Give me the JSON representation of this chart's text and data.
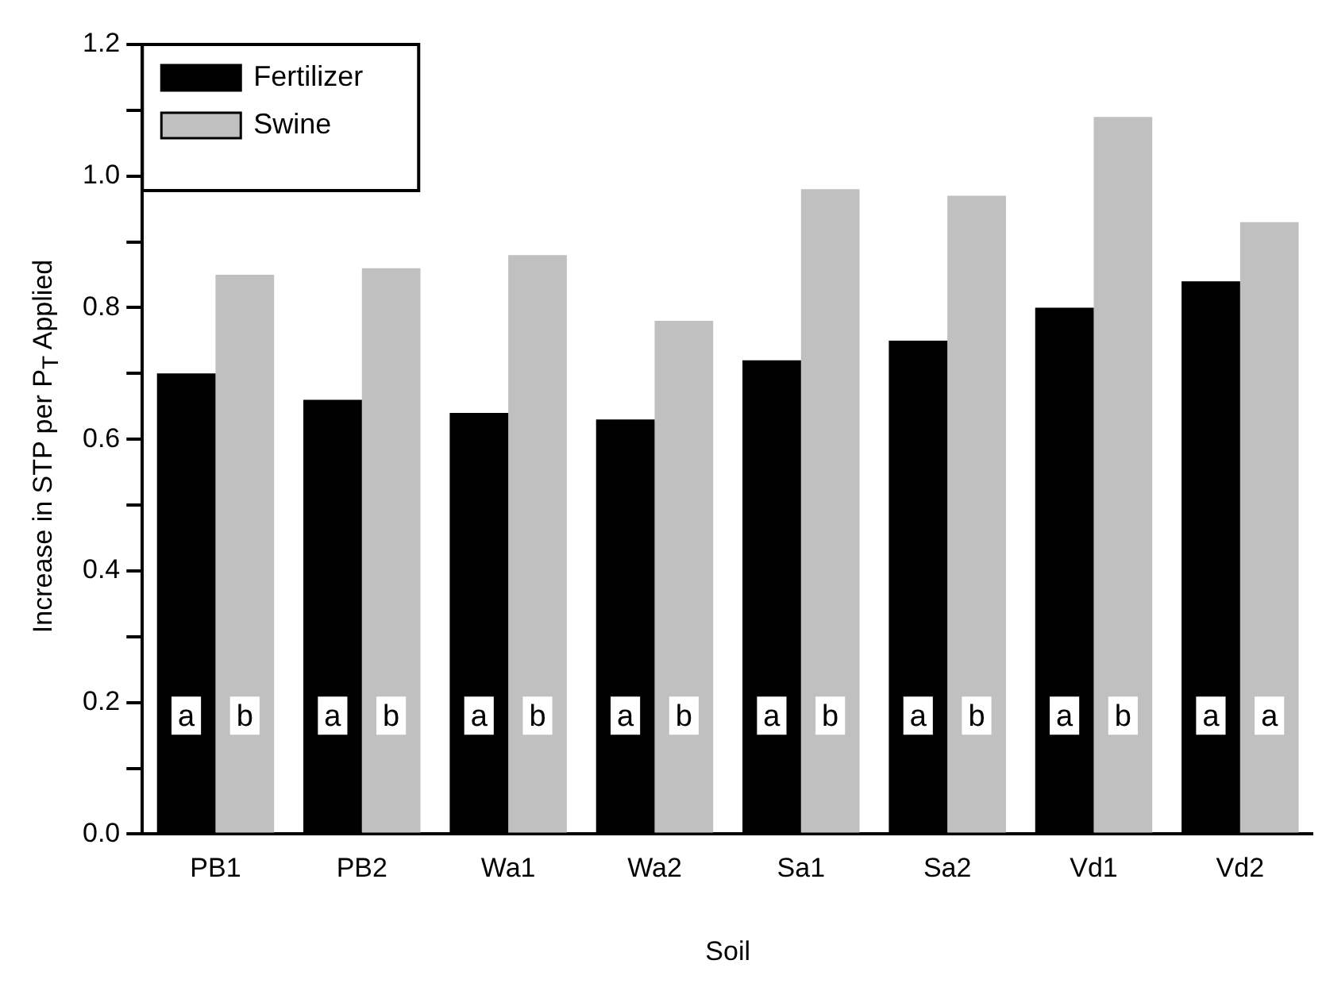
{
  "chart_data": {
    "type": "bar",
    "xlabel": "Soil",
    "ylabel": "Increase in STP per P$_{T}$ Applied",
    "categories": [
      "PB1",
      "PB2",
      "Wa1",
      "Wa2",
      "Sa1",
      "Sa2",
      "Vd1",
      "Vd2"
    ],
    "series": [
      {
        "name": "Fertilizer",
        "color": "#000000",
        "values": [
          0.7,
          0.66,
          0.64,
          0.63,
          0.72,
          0.75,
          0.8,
          0.84
        ]
      },
      {
        "name": "Swine",
        "color": "#c0c0c0",
        "values": [
          0.85,
          0.86,
          0.88,
          0.78,
          0.98,
          0.97,
          1.09,
          0.93
        ]
      }
    ],
    "ylim": [
      0,
      1.2
    ],
    "yticks": [
      {
        "value": 0,
        "label": "0.0"
      },
      {
        "value": 0.1,
        "label": null
      },
      {
        "value": 0.2,
        "label": "0.2"
      },
      {
        "value": 0.3,
        "label": null
      },
      {
        "value": 0.4,
        "label": "0.4"
      },
      {
        "value": 0.5,
        "label": null
      },
      {
        "value": 0.6,
        "label": "0.6"
      },
      {
        "value": 0.7,
        "label": null
      },
      {
        "value": 0.8,
        "label": "0.8"
      },
      {
        "value": 0.9,
        "label": null
      },
      {
        "value": 1.0,
        "label": "1.0"
      },
      {
        "value": 1.1,
        "label": null
      },
      {
        "value": 1.2,
        "label": "1.2"
      }
    ],
    "grid": false,
    "legend": "top left",
    "annotations": [
      {
        "text": "a",
        "x": "PB1",
        "y": 0.18
      },
      {
        "text": "b",
        "x": "PB1",
        "y": 0.18
      },
      {
        "text": "a",
        "x": "PB2",
        "y": 0.18
      },
      {
        "text": "b",
        "x": "PB2",
        "y": 0.18
      },
      {
        "text": "a",
        "x": "Wa1",
        "y": 0.18
      },
      {
        "text": "b",
        "x": "Wa1",
        "y": 0.18
      },
      {
        "text": "a",
        "x": "Wa2",
        "y": 0.18
      },
      {
        "text": "b",
        "x": "Wa2",
        "y": 0.18
      },
      {
        "text": "a",
        "x": "Sa1",
        "y": 0.18
      },
      {
        "text": "b",
        "x": "Sa1",
        "y": 0.18
      },
      {
        "text": "a",
        "x": "Sa2",
        "y": 0.18
      },
      {
        "text": "b",
        "x": "Sa2",
        "y": 0.18
      },
      {
        "text": "a",
        "x": "Vd1",
        "y": 0.18
      },
      {
        "text": "b",
        "x": "Vd1",
        "y": 0.18
      },
      {
        "text": "a",
        "x": "Vd2",
        "y": 0.18
      },
      {
        "text": "a",
        "x": "Vd2",
        "y": 0.18
      }
    ]
  }
}
